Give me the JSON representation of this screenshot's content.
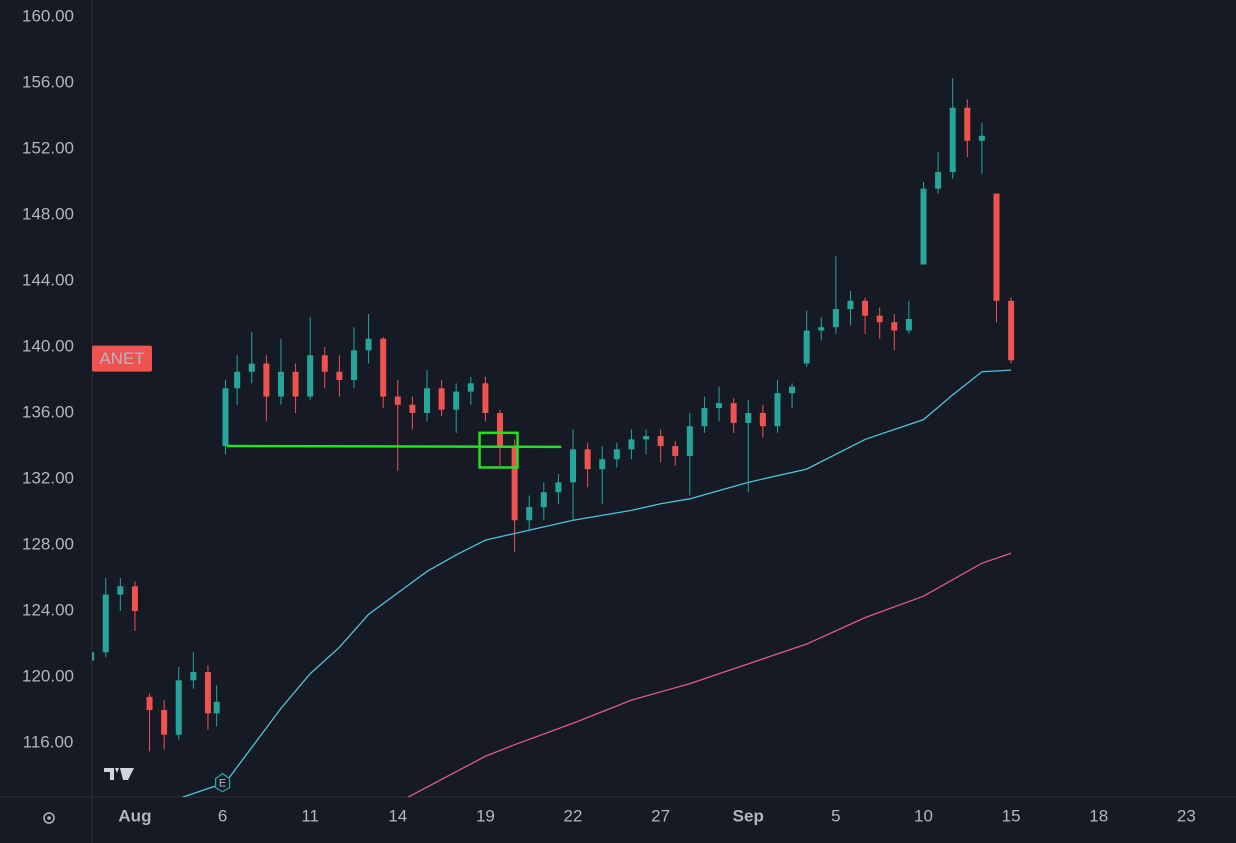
{
  "chart_data": {
    "type": "candlestick",
    "symbol": "ANET",
    "symbol_value": 139.3,
    "up_color": "#26a69a",
    "down_color": "#ef5350",
    "grid": false,
    "xlim": [
      -1.47,
      37.7
    ],
    "ylim": [
      112.73,
      161.03
    ],
    "yticks": [
      {
        "value": 116,
        "label": "116.00"
      },
      {
        "value": 120,
        "label": "120.00"
      },
      {
        "value": 124,
        "label": "124.00"
      },
      {
        "value": 128,
        "label": "128.00"
      },
      {
        "value": 132,
        "label": "132.00"
      },
      {
        "value": 136,
        "label": "136.00"
      },
      {
        "value": 140,
        "label": "140.00"
      },
      {
        "value": 144,
        "label": "144.00"
      },
      {
        "value": 148,
        "label": "148.00"
      },
      {
        "value": 152,
        "label": "152.00"
      },
      {
        "value": 156,
        "label": "156.00"
      },
      {
        "value": 160,
        "label": "160.00"
      }
    ],
    "xticks": [
      {
        "value": 0,
        "label": "Aug"
      },
      {
        "value": 3,
        "label": "6"
      },
      {
        "value": 6,
        "label": "11"
      },
      {
        "value": 9,
        "label": "14"
      },
      {
        "value": 12,
        "label": "19"
      },
      {
        "value": 15,
        "label": "22"
      },
      {
        "value": 18,
        "label": "27"
      },
      {
        "value": 21,
        "label": "Sep"
      },
      {
        "value": 24,
        "label": "5"
      },
      {
        "value": 27,
        "label": "10"
      },
      {
        "value": 30,
        "label": "15"
      },
      {
        "value": 33,
        "label": "18"
      },
      {
        "value": 36,
        "label": "23"
      }
    ],
    "x": [
      -1.5,
      -1.0,
      -0.5,
      0,
      0.5,
      1.0,
      1.5,
      2.0,
      2.5,
      2.8,
      3.1,
      3.5,
      4.0,
      4.5,
      5.0,
      5.5,
      6.0,
      6.5,
      7.0,
      7.5,
      8.0,
      8.5,
      9.0,
      9.5,
      10.0,
      10.5,
      11.0,
      11.5,
      12.0,
      12.5,
      13.0,
      13.5,
      14.0,
      14.5,
      15.0,
      15.5,
      16.0,
      16.5,
      17.0,
      17.5,
      18.0,
      18.5,
      19.0,
      19.5,
      20.0,
      20.5,
      21.0,
      21.5,
      22.0,
      22.5,
      23.0,
      23.5,
      24.0,
      24.5,
      25.0,
      25.5,
      26.0,
      26.5,
      27.0,
      27.5,
      28.0,
      28.5,
      29.0,
      29.5,
      30.0
    ],
    "open": [
      121,
      121.5,
      125,
      125.5,
      118.8,
      118,
      116.5,
      119.8,
      120.3,
      117.8,
      134,
      137.5,
      138.5,
      139,
      137,
      138.5,
      137,
      139.5,
      138.5,
      138,
      139.8,
      140.5,
      137,
      136.5,
      136,
      137.5,
      136.2,
      137.3,
      137.8,
      136,
      134,
      129.5,
      130.3,
      131.2,
      131.8,
      133.8,
      132.6,
      133.2,
      133.8,
      134.4,
      134.6,
      134,
      133.4,
      135.2,
      136.3,
      136.6,
      135.4,
      136,
      135.2,
      137.2,
      139,
      141,
      141.2,
      142.3,
      142.8,
      141.9,
      141.5,
      141,
      145,
      149.6,
      150.6,
      154.5,
      152.5,
      149.3,
      142.8
    ],
    "high": [
      122.3,
      126,
      126,
      125.8,
      119,
      118.6,
      120.6,
      121.5,
      120.7,
      119.5,
      138,
      139.5,
      140.9,
      139.5,
      140.5,
      139,
      141.8,
      140,
      139.5,
      141.2,
      142,
      140.6,
      138,
      137,
      138.6,
      138,
      137.8,
      138.2,
      138.2,
      136.2,
      134.4,
      131,
      131.8,
      132.3,
      135,
      134.2,
      134,
      134.2,
      135,
      135,
      135,
      134.3,
      136,
      137,
      137.6,
      136.9,
      136.8,
      136.5,
      138,
      137.8,
      142.2,
      141.8,
      145.5,
      143.4,
      143,
      142.4,
      142,
      142.8,
      150,
      151.8,
      156.3,
      155,
      153.6,
      149.3,
      143
    ],
    "low": [
      120.8,
      121.2,
      124,
      122.8,
      115.5,
      115.6,
      116.2,
      119.3,
      116.8,
      117,
      133.5,
      136.5,
      137.8,
      135.5,
      136.5,
      136,
      136.8,
      137.5,
      137,
      137.5,
      139,
      136.3,
      132.5,
      135,
      135.5,
      135.8,
      134.8,
      136.5,
      135.5,
      132.8,
      127.6,
      128.8,
      129.5,
      130.5,
      129.5,
      131.5,
      130.5,
      132.7,
      133.2,
      133.5,
      133,
      132.8,
      131,
      134.8,
      135.5,
      134.8,
      131.2,
      134.5,
      134.8,
      136.3,
      138.8,
      140.4,
      140.8,
      141.3,
      140.8,
      140.5,
      139.8,
      140.8,
      145,
      149.3,
      150.2,
      151.5,
      150.5,
      141.5,
      139
    ],
    "close": [
      121.5,
      125,
      125.5,
      124,
      118,
      116.5,
      119.8,
      120.3,
      117.8,
      118.5,
      137.5,
      138.5,
      139,
      137,
      138.5,
      137,
      139.5,
      138.5,
      138,
      139.8,
      140.5,
      137,
      136.5,
      136,
      137.5,
      136.2,
      137.3,
      137.8,
      136,
      134,
      129.5,
      130.3,
      131.2,
      131.8,
      133.8,
      132.6,
      133.2,
      133.8,
      134.4,
      134.6,
      134,
      133.4,
      135.2,
      136.3,
      136.6,
      135.4,
      136,
      135.2,
      137.2,
      137.6,
      141,
      141.2,
      142.3,
      142.8,
      141.9,
      141.5,
      141,
      141.7,
      149.6,
      150.6,
      154.5,
      152.5,
      152.8,
      142.8,
      139.2
    ],
    "lines": [
      {
        "color": "#4fc3d9",
        "x": [
          1.6,
          3.1,
          5,
          6,
          7,
          8,
          9,
          10,
          11,
          12,
          13,
          15,
          17,
          18,
          19,
          21,
          23,
          25,
          26,
          27,
          28,
          29,
          30
        ],
        "values": [
          112.7,
          113.6,
          118.1,
          120.2,
          121.8,
          123.8,
          125.1,
          126.4,
          127.4,
          128.3,
          128.7,
          129.5,
          130.1,
          130.5,
          130.8,
          131.8,
          132.6,
          134.4,
          135.0,
          135.6,
          137.1,
          138.5,
          138.6
        ]
      },
      {
        "color": "#e0598b",
        "x": [
          9.33,
          12,
          13,
          15,
          17,
          19,
          21,
          23,
          25,
          27,
          29,
          30
        ],
        "values": [
          112.7,
          115.2,
          115.9,
          117.2,
          118.6,
          119.6,
          120.8,
          122.0,
          123.6,
          124.9,
          126.9,
          127.5
        ]
      }
    ],
    "drawings": {
      "hline": {
        "color": "#22e022",
        "x": [
          3.15,
          14.6
        ],
        "values": [
          134.0,
          133.95
        ]
      },
      "box": {
        "color": "#22e022",
        "x": [
          11.8,
          13.1
        ],
        "values": [
          134.8,
          132.7
        ]
      }
    },
    "events": [
      {
        "x": 3,
        "y": 113.6,
        "label": "E"
      }
    ]
  }
}
